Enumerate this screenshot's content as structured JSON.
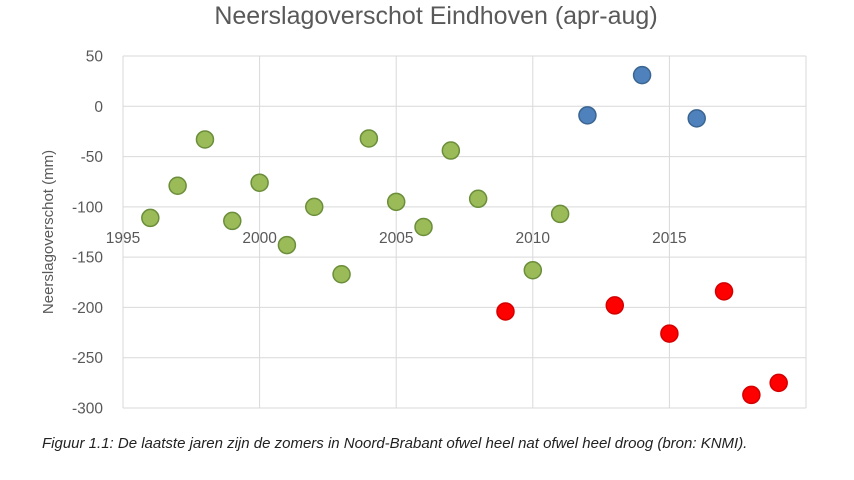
{
  "chart_data": {
    "type": "scatter",
    "title": "Neerslagoverschot Eindhoven (apr-aug)",
    "xlabel": "",
    "ylabel": "Neerslagoverschot (mm)",
    "xlim": [
      1995,
      2020
    ],
    "ylim": [
      -300,
      50
    ],
    "x_ticks": [
      "1995",
      "2000",
      "2005",
      "2010",
      "2015"
    ],
    "y_ticks": [
      "50",
      "0",
      "-50",
      "-100",
      "-150",
      "-200",
      "-250",
      "-300"
    ],
    "grid": true,
    "series": [
      {
        "color": "#9bbb59",
        "points": [
          {
            "x": 1996,
            "y": -111
          },
          {
            "x": 1997,
            "y": -79
          },
          {
            "x": 1998,
            "y": -33
          },
          {
            "x": 1999,
            "y": -114
          },
          {
            "x": 2000,
            "y": -76
          },
          {
            "x": 2001,
            "y": -138
          },
          {
            "x": 2002,
            "y": -100
          },
          {
            "x": 2003,
            "y": -167
          },
          {
            "x": 2004,
            "y": -32
          },
          {
            "x": 2005,
            "y": -95
          },
          {
            "x": 2006,
            "y": -120
          },
          {
            "x": 2007,
            "y": -44
          },
          {
            "x": 2008,
            "y": -92
          },
          {
            "x": 2010,
            "y": -163
          },
          {
            "x": 2011,
            "y": -107
          }
        ]
      },
      {
        "color": "#4f81bd",
        "points": [
          {
            "x": 2012,
            "y": -9
          },
          {
            "x": 2014,
            "y": 31
          },
          {
            "x": 2016,
            "y": -12
          }
        ]
      },
      {
        "color": "#ff0000",
        "points": [
          {
            "x": 2009,
            "y": -204
          },
          {
            "x": 2013,
            "y": -198
          },
          {
            "x": 2015,
            "y": -226
          },
          {
            "x": 2017,
            "y": -184
          },
          {
            "x": 2018,
            "y": -287
          },
          {
            "x": 2019,
            "y": -275
          }
        ]
      }
    ]
  },
  "caption": {
    "text": "Figuur 1.1: De laatste jaren zijn de zomers in Noord-Brabant ofwel heel nat ofwel heel droog (bron: KNMI)."
  }
}
